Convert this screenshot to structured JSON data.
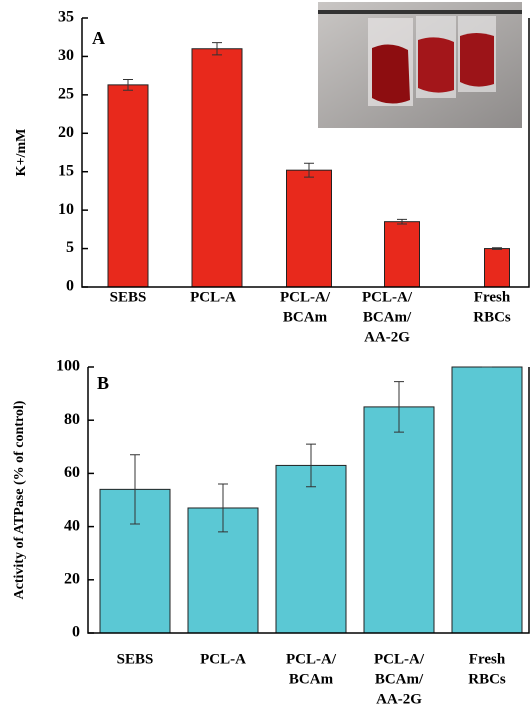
{
  "chart_data": [
    {
      "type": "bar",
      "panel": "A",
      "y_label": "K+/mM",
      "categories": [
        [
          "SEBS"
        ],
        [
          "PCL-A"
        ],
        [
          "PCL-A/",
          "BCAm"
        ],
        [
          "PCL-A/",
          "BCAm/",
          "AA-2G"
        ],
        [
          "Fresh",
          "RBCs"
        ]
      ],
      "values": [
        26.3,
        31,
        15.2,
        8.5,
        5
      ],
      "errors": [
        0.7,
        0.8,
        0.9,
        0.3,
        0.1
      ],
      "color": "#e8291c",
      "ylim": [
        0,
        35
      ],
      "yticks": [
        0,
        5,
        10,
        15,
        20,
        25,
        30,
        35
      ]
    },
    {
      "type": "bar",
      "panel": "B",
      "y_label": "Activity of ATPase (% of control)",
      "categories": [
        [
          "SEBS"
        ],
        [
          "PCL-A"
        ],
        [
          "PCL-A/",
          "BCAm"
        ],
        [
          "PCL-A/",
          "BCAm/",
          "AA-2G"
        ],
        [
          "Fresh",
          "RBCs"
        ]
      ],
      "values": [
        54,
        47,
        63,
        85,
        100
      ],
      "errors": [
        13,
        9,
        8,
        9.5,
        0
      ],
      "color": "#5bc8d4",
      "ylim": [
        0,
        100
      ],
      "yticks": [
        0,
        20,
        40,
        60,
        80,
        100
      ]
    }
  ]
}
